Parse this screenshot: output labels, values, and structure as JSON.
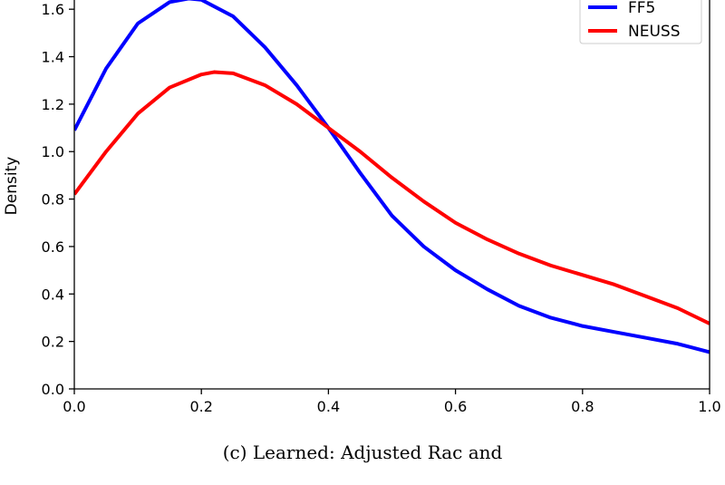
{
  "caption": "(c) Learned: Adjusted Rac and",
  "chart_data": {
    "type": "line",
    "xlabel": "",
    "ylabel": "Density",
    "xlim": [
      0.0,
      1.0
    ],
    "ylim": [
      0.0,
      1.7
    ],
    "x_ticks": [
      "0.0",
      "0.2",
      "0.4",
      "0.6",
      "0.8",
      "1.0"
    ],
    "y_ticks": [
      "0.0",
      "0.2",
      "0.4",
      "0.6",
      "0.8",
      "1.0",
      "1.2",
      "1.4",
      "1.6"
    ],
    "grid": false,
    "legend_position": "top-right",
    "series": [
      {
        "name": "FF5",
        "color": "#0000ff",
        "x": [
          0.0,
          0.05,
          0.1,
          0.15,
          0.18,
          0.2,
          0.25,
          0.3,
          0.35,
          0.4,
          0.45,
          0.5,
          0.55,
          0.6,
          0.65,
          0.7,
          0.75,
          0.8,
          0.85,
          0.9,
          0.95,
          1.0
        ],
        "y": [
          1.09,
          1.35,
          1.54,
          1.63,
          1.645,
          1.64,
          1.57,
          1.44,
          1.28,
          1.1,
          0.91,
          0.73,
          0.6,
          0.5,
          0.42,
          0.35,
          0.3,
          0.265,
          0.24,
          0.215,
          0.19,
          0.155
        ]
      },
      {
        "name": "NEUSS",
        "color": "#ff0000",
        "x": [
          0.0,
          0.05,
          0.1,
          0.15,
          0.2,
          0.22,
          0.25,
          0.3,
          0.35,
          0.4,
          0.45,
          0.5,
          0.55,
          0.6,
          0.65,
          0.7,
          0.75,
          0.8,
          0.85,
          0.9,
          0.95,
          1.0
        ],
        "y": [
          0.82,
          1.0,
          1.16,
          1.27,
          1.325,
          1.335,
          1.33,
          1.28,
          1.2,
          1.1,
          1.0,
          0.89,
          0.79,
          0.7,
          0.63,
          0.57,
          0.52,
          0.48,
          0.44,
          0.39,
          0.34,
          0.275
        ]
      }
    ]
  }
}
